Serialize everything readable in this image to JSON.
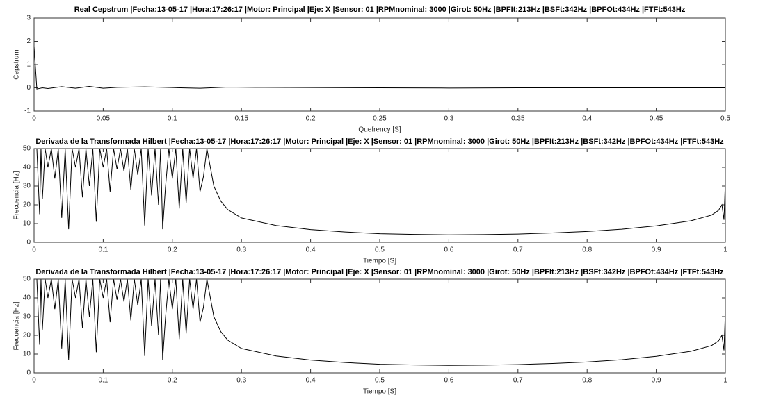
{
  "chart_data": [
    {
      "type": "line",
      "title": "Real Cepstrum |Fecha:13-05-17 |Hora:17:26:17 |Motor: Principal |Eje: X |Sensor: 01 |RPMnominal: 3000 |Girot: 50Hz |BPFIt:213Hz |BSFt:342Hz |BPFOt:434Hz |FTFt:543Hz",
      "xlabel": "Quefrency [S]",
      "ylabel": "Cepstrum",
      "color": "#000000",
      "x": [
        0,
        0.002,
        0.006,
        0.01,
        0.02,
        0.03,
        0.04,
        0.05,
        0.06,
        0.08,
        0.1,
        0.12,
        0.14,
        0.16,
        0.2,
        0.25,
        0.3,
        0.35,
        0.4,
        0.45,
        0.5
      ],
      "values": [
        1.8,
        -0.05,
        0,
        -0.03,
        0.05,
        -0.02,
        0.06,
        -0.02,
        0.02,
        0.04,
        0.01,
        -0.02,
        0.03,
        0.02,
        0.01,
        0,
        -0.01,
        0,
        0,
        0,
        0
      ],
      "xlim": [
        0,
        0.5
      ],
      "xticks": [
        0,
        0.05,
        0.1,
        0.15,
        0.2,
        0.25,
        0.3,
        0.35,
        0.4,
        0.45,
        0.5
      ],
      "ylim": [
        -1,
        3
      ],
      "yticks": [
        -1,
        0,
        1,
        2,
        3
      ]
    },
    {
      "type": "line",
      "title": "Derivada de la Transformada Hilbert |Fecha:13-05-17 |Hora:17:26:17 |Motor: Principal |Eje: X |Sensor: 01 |RPMnominal: 3000 |Girot: 50Hz |BPFIt:213Hz |BSFt:342Hz |BPFOt:434Hz |FTFt:543Hz",
      "xlabel": "Tiempo [S]",
      "ylabel": "Frecuencia [Hz]",
      "color": "#000000",
      "x": [
        0,
        0.004,
        0.008,
        0.01,
        0.012,
        0.016,
        0.02,
        0.025,
        0.03,
        0.035,
        0.04,
        0.045,
        0.05,
        0.055,
        0.06,
        0.065,
        0.07,
        0.075,
        0.08,
        0.085,
        0.09,
        0.095,
        0.1,
        0.105,
        0.11,
        0.115,
        0.12,
        0.125,
        0.13,
        0.135,
        0.14,
        0.145,
        0.15,
        0.155,
        0.16,
        0.165,
        0.17,
        0.175,
        0.18,
        0.183,
        0.186,
        0.19,
        0.195,
        0.2,
        0.205,
        0.21,
        0.215,
        0.22,
        0.225,
        0.23,
        0.235,
        0.24,
        0.245,
        0.25,
        0.26,
        0.27,
        0.28,
        0.3,
        0.35,
        0.4,
        0.45,
        0.5,
        0.55,
        0.6,
        0.65,
        0.7,
        0.75,
        0.8,
        0.85,
        0.9,
        0.95,
        0.98,
        0.99,
        0.995,
        0.998,
        1
      ],
      "values": [
        50,
        50,
        15,
        50,
        23,
        50,
        40,
        50,
        34,
        50,
        13,
        50,
        7,
        50,
        40,
        50,
        24,
        50,
        30,
        50,
        11,
        50,
        40,
        50,
        27,
        50,
        39,
        50,
        38,
        50,
        28,
        50,
        36,
        50,
        9,
        50,
        25,
        50,
        20,
        50,
        7,
        29,
        50,
        34,
        50,
        18,
        50,
        21,
        50,
        34,
        50,
        27,
        35,
        50,
        30,
        22,
        17.5,
        13,
        9,
        6.8,
        5.5,
        4.6,
        4.2,
        4,
        4.1,
        4.4,
        5,
        5.8,
        7,
        8.8,
        11.5,
        14.5,
        17,
        20,
        12,
        33
      ],
      "xlim": [
        0,
        1
      ],
      "xticks": [
        0,
        0.1,
        0.2,
        0.3,
        0.4,
        0.5,
        0.6,
        0.7,
        0.8,
        0.9,
        1
      ],
      "ylim": [
        0,
        50
      ],
      "yticks": [
        0,
        10,
        20,
        30,
        40,
        50
      ]
    },
    {
      "type": "line",
      "title": "Derivada de la Transformada Hilbert |Fecha:13-05-17 |Hora:17:26:17 |Motor: Principal |Eje: X |Sensor: 01 |RPMnominal: 3000 |Girot: 50Hz |BPFIt:213Hz |BSFt:342Hz |BPFOt:434Hz |FTFt:543Hz",
      "xlabel": "Tiempo [S]",
      "ylabel": "Frecuencia [Hz]",
      "color": "#000000",
      "x": [
        0,
        0.004,
        0.008,
        0.01,
        0.012,
        0.016,
        0.02,
        0.025,
        0.03,
        0.035,
        0.04,
        0.045,
        0.05,
        0.055,
        0.06,
        0.065,
        0.07,
        0.075,
        0.08,
        0.085,
        0.09,
        0.095,
        0.1,
        0.105,
        0.11,
        0.115,
        0.12,
        0.125,
        0.13,
        0.135,
        0.14,
        0.145,
        0.15,
        0.155,
        0.16,
        0.165,
        0.17,
        0.175,
        0.18,
        0.183,
        0.186,
        0.19,
        0.195,
        0.2,
        0.205,
        0.21,
        0.215,
        0.22,
        0.225,
        0.23,
        0.235,
        0.24,
        0.245,
        0.25,
        0.26,
        0.27,
        0.28,
        0.3,
        0.35,
        0.4,
        0.45,
        0.5,
        0.55,
        0.6,
        0.65,
        0.7,
        0.75,
        0.8,
        0.85,
        0.9,
        0.95,
        0.98,
        0.99,
        0.995,
        0.998,
        1
      ],
      "values": [
        50,
        50,
        15,
        50,
        23,
        50,
        40,
        50,
        34,
        50,
        13,
        50,
        7,
        50,
        40,
        50,
        24,
        50,
        30,
        50,
        11,
        50,
        40,
        50,
        27,
        50,
        39,
        50,
        38,
        50,
        28,
        50,
        36,
        50,
        9,
        50,
        25,
        50,
        20,
        50,
        7,
        29,
        50,
        34,
        50,
        18,
        50,
        21,
        50,
        34,
        50,
        27,
        35,
        50,
        30,
        22,
        17.5,
        13,
        9,
        6.8,
        5.5,
        4.6,
        4.2,
        4,
        4.1,
        4.4,
        5,
        5.8,
        7,
        8.8,
        11.5,
        14.5,
        17,
        20,
        12,
        33
      ],
      "xlim": [
        0,
        1
      ],
      "xticks": [
        0,
        0.1,
        0.2,
        0.3,
        0.4,
        0.5,
        0.6,
        0.7,
        0.8,
        0.9,
        1
      ],
      "ylim": [
        0,
        50
      ],
      "yticks": [
        0,
        10,
        20,
        30,
        40,
        50
      ]
    }
  ]
}
